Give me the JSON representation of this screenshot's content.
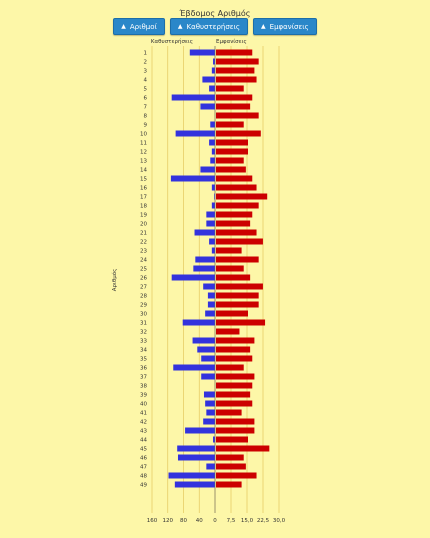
{
  "title": "Έβδομος Αριθμός",
  "buttons": [
    {
      "label": "Αριθμοί",
      "icon": "sort-arrow-icon"
    },
    {
      "label": "Καθυστερήσεις",
      "icon": "sort-arrow-icon"
    },
    {
      "label": "Εμφανίσεις",
      "icon": "sort-arrow-icon"
    }
  ],
  "colors": {
    "background": "#fdf7a8",
    "delays": "#3333dd",
    "appearances": "#cc0000",
    "button": "#2a87c9"
  },
  "chart_data": {
    "type": "bar",
    "orientation": "horizontal-diverging",
    "ylabel": "Αριθμός",
    "series_left_label": "Καθυστερήσεις",
    "series_right_label": "Εμφανίσεις",
    "categories": [
      "1",
      "2",
      "3",
      "4",
      "5",
      "6",
      "7",
      "8",
      "9",
      "10",
      "11",
      "12",
      "13",
      "14",
      "15",
      "16",
      "17",
      "18",
      "19",
      "20",
      "21",
      "22",
      "23",
      "24",
      "25",
      "26",
      "27",
      "28",
      "29",
      "30",
      "31",
      "32",
      "33",
      "34",
      "35",
      "36",
      "37",
      "38",
      "39",
      "40",
      "41",
      "42",
      "43",
      "44",
      "45",
      "46",
      "47",
      "48",
      "49"
    ],
    "x_ticks": [
      "160",
      "120",
      "80",
      "40",
      "0",
      "7,5",
      "15,0",
      "22,5",
      "30,0"
    ],
    "delays": [
      64,
      5,
      8,
      32,
      15,
      110,
      37,
      0,
      12,
      100,
      15,
      8,
      12,
      37,
      112,
      8,
      2,
      8,
      22,
      22,
      52,
      15,
      8,
      50,
      55,
      110,
      30,
      18,
      18,
      25,
      82,
      0,
      57,
      45,
      35,
      106,
      35,
      0,
      28,
      25,
      22,
      30,
      76,
      5,
      96,
      94,
      22,
      118,
      102
    ],
    "appearances": [
      17,
      20,
      18,
      19,
      13,
      17,
      16,
      20,
      13,
      21,
      15,
      15,
      13,
      14,
      17,
      19,
      24,
      20,
      17,
      16,
      19,
      22,
      12,
      20,
      13,
      16,
      22,
      20,
      20,
      15,
      23,
      11,
      18,
      16,
      17,
      13,
      18,
      17,
      16,
      17,
      12,
      18,
      18,
      15,
      25,
      13,
      14,
      19,
      12
    ],
    "left_max": 160,
    "right_max": 30,
    "grid": true,
    "gridline_color": "#e3c85f"
  }
}
